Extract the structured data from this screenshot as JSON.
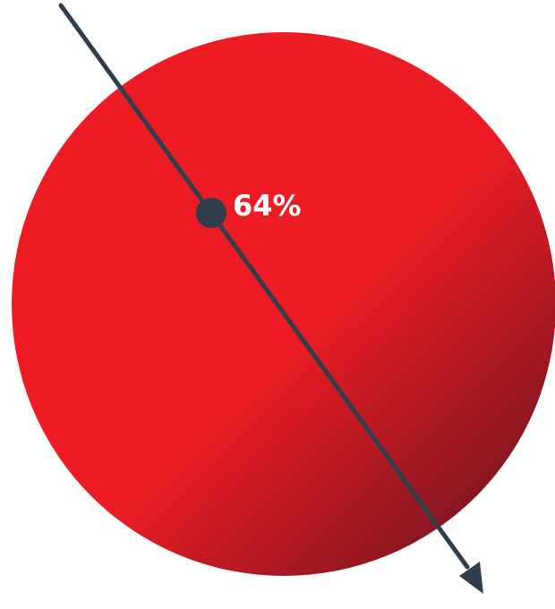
{
  "graphic": {
    "percentage_label": "64%",
    "percentage_value": 64,
    "icon": "circle-with-diagonal-arrow"
  },
  "colors": {
    "circle_bright": "#ED1C24",
    "circle_dark": "#6E1520",
    "arrow": "#2F3E4C",
    "label": "#FFFFFF",
    "background": "#FFFFFF"
  }
}
